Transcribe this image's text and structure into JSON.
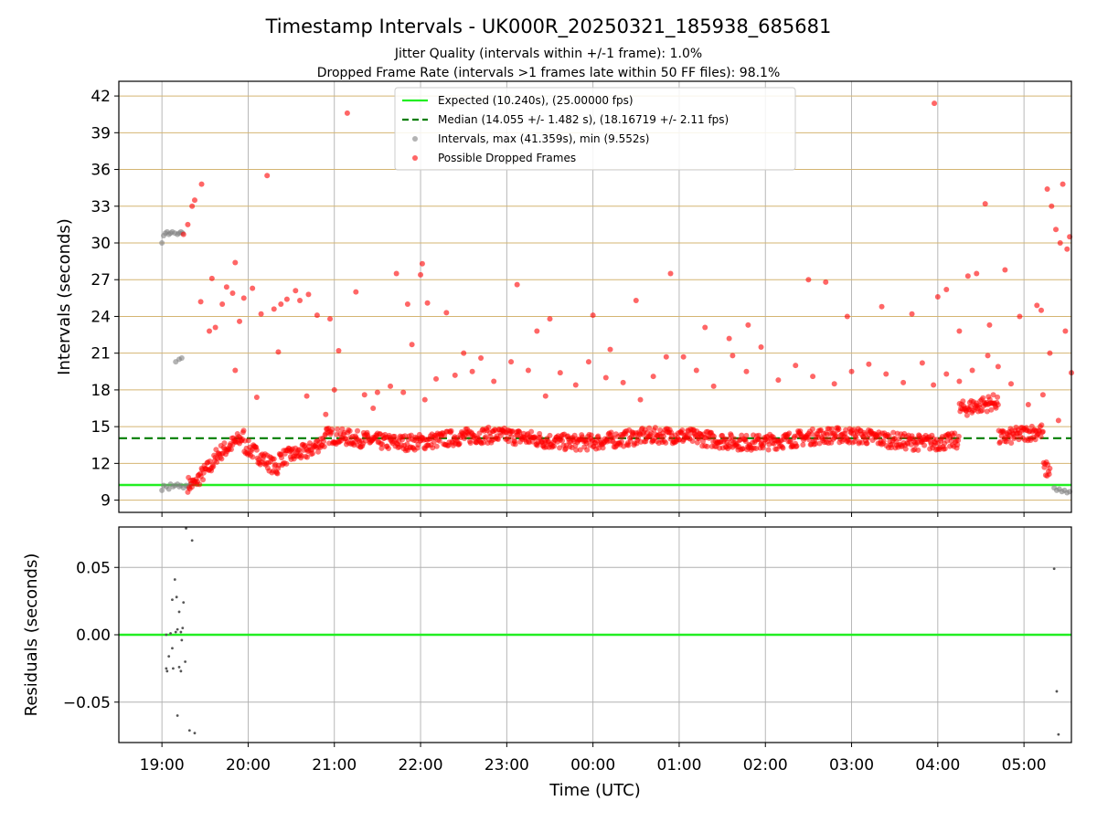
{
  "chart_data": {
    "type": "scatter",
    "title": "Timestamp Intervals - UK000R_20250321_185938_685681",
    "subtitle_line1": "Jitter Quality (intervals within +/-1 frame): 1.0%",
    "subtitle_line2": "Dropped Frame Rate (intervals >1 frames late within 50 FF files): 98.1%",
    "xlabel": "Time (UTC)",
    "x_tick_labels": [
      "19:00",
      "20:00",
      "21:00",
      "22:00",
      "23:00",
      "00:00",
      "01:00",
      "02:00",
      "03:00",
      "04:00",
      "05:00"
    ],
    "x_range_hours": [
      18.5,
      29.55
    ],
    "panels": [
      {
        "name": "intervals",
        "ylabel": "Intervals (seconds)",
        "ylim": [
          8.0,
          43.2
        ],
        "y_ticks": [
          9,
          12,
          15,
          18,
          21,
          24,
          27,
          30,
          33,
          36,
          39,
          42
        ],
        "grid_horizontal_color": "#d4b572",
        "expected_line": {
          "value": 10.24,
          "label": "Expected (10.240s), (25.00000 fps)",
          "color": "#22ee22"
        },
        "median_line": {
          "value": 14.055,
          "label": "Median (14.055 +/- 1.482 s), (18.16719 +/- 2.11 fps)",
          "color": "#007d00"
        },
        "series": [
          {
            "name": "Intervals, max (41.359s), min (9.552s)",
            "color": "#808080"
          },
          {
            "name": "Possible Dropped Frames",
            "color": "#ff0000"
          }
        ],
        "legend_location": "top-center"
      },
      {
        "name": "residuals",
        "ylabel": "Residuals (seconds)",
        "ylim": [
          -0.08,
          0.08
        ],
        "y_ticks": [
          0.05,
          0.0,
          -0.05
        ],
        "y_tick_labels": [
          "0.05",
          "0.00",
          "−0.05"
        ],
        "zero_line_color": "#22ee22"
      }
    ],
    "grey_points": [
      [
        19.0,
        30.0
      ],
      [
        19.02,
        30.6
      ],
      [
        19.04,
        30.8
      ],
      [
        19.06,
        30.9
      ],
      [
        19.08,
        30.7
      ],
      [
        19.1,
        30.8
      ],
      [
        19.12,
        30.9
      ],
      [
        19.15,
        30.8
      ],
      [
        19.18,
        30.7
      ],
      [
        19.2,
        30.8
      ],
      [
        19.22,
        30.9
      ],
      [
        19.24,
        30.8
      ],
      [
        19.16,
        20.3
      ],
      [
        19.2,
        20.5
      ],
      [
        19.23,
        20.6
      ],
      [
        19.0,
        9.8
      ],
      [
        19.02,
        10.2
      ],
      [
        19.05,
        10.1
      ],
      [
        19.08,
        9.9
      ],
      [
        19.1,
        10.3
      ],
      [
        19.13,
        10.1
      ],
      [
        19.15,
        10.2
      ],
      [
        19.18,
        10.3
      ],
      [
        19.2,
        10.1
      ],
      [
        19.22,
        10.2
      ],
      [
        19.25,
        10.0
      ],
      [
        19.28,
        10.2
      ],
      [
        19.3,
        10.1
      ],
      [
        19.33,
        10.3
      ],
      [
        29.35,
        10.0
      ],
      [
        29.38,
        9.8
      ],
      [
        29.41,
        9.9
      ],
      [
        29.44,
        9.7
      ],
      [
        29.47,
        9.8
      ],
      [
        29.5,
        9.6
      ],
      [
        29.53,
        9.7
      ]
    ],
    "red_points": [
      [
        19.25,
        30.7
      ],
      [
        19.3,
        31.5
      ],
      [
        19.35,
        33.0
      ],
      [
        19.38,
        33.5
      ],
      [
        19.46,
        34.8
      ],
      [
        19.58,
        27.1
      ],
      [
        19.7,
        25.0
      ],
      [
        19.75,
        26.4
      ],
      [
        19.85,
        28.4
      ],
      [
        19.85,
        19.6
      ],
      [
        19.9,
        23.6
      ],
      [
        19.95,
        25.5
      ],
      [
        20.05,
        26.3
      ],
      [
        20.1,
        17.4
      ],
      [
        20.15,
        24.2
      ],
      [
        20.22,
        35.5
      ],
      [
        20.3,
        24.6
      ],
      [
        20.38,
        25.0
      ],
      [
        20.45,
        25.4
      ],
      [
        20.55,
        26.1
      ],
      [
        20.6,
        25.3
      ],
      [
        20.7,
        25.8
      ],
      [
        20.8,
        24.1
      ],
      [
        20.95,
        23.8
      ],
      [
        21.05,
        21.2
      ],
      [
        21.15,
        40.6
      ],
      [
        21.25,
        26.0
      ],
      [
        21.35,
        17.6
      ],
      [
        21.5,
        17.8
      ],
      [
        21.72,
        27.5
      ],
      [
        21.85,
        25.0
      ],
      [
        21.9,
        21.7
      ],
      [
        22.0,
        27.4
      ],
      [
        22.02,
        28.3
      ],
      [
        22.08,
        25.1
      ],
      [
        22.3,
        24.3
      ],
      [
        22.5,
        21.0
      ],
      [
        22.7,
        20.6
      ],
      [
        23.12,
        26.6
      ],
      [
        23.35,
        22.8
      ],
      [
        23.5,
        23.8
      ],
      [
        24.0,
        24.1
      ],
      [
        24.2,
        21.3
      ],
      [
        24.5,
        25.3
      ],
      [
        24.9,
        27.5
      ],
      [
        25.3,
        23.1
      ],
      [
        25.58,
        22.2
      ],
      [
        25.8,
        23.3
      ],
      [
        26.5,
        27.0
      ],
      [
        26.7,
        26.8
      ],
      [
        26.95,
        24.0
      ],
      [
        27.35,
        24.8
      ],
      [
        27.7,
        24.2
      ],
      [
        27.96,
        41.4
      ],
      [
        28.0,
        25.6
      ],
      [
        28.1,
        26.2
      ],
      [
        28.25,
        22.8
      ],
      [
        28.35,
        27.3
      ],
      [
        28.45,
        27.5
      ],
      [
        28.55,
        33.2
      ],
      [
        28.6,
        23.3
      ],
      [
        28.78,
        27.8
      ],
      [
        28.95,
        24.0
      ],
      [
        29.15,
        24.9
      ],
      [
        29.2,
        24.5
      ],
      [
        29.3,
        21.0
      ],
      [
        29.27,
        34.4
      ],
      [
        29.32,
        33.0
      ],
      [
        29.37,
        31.1
      ],
      [
        29.45,
        34.8
      ],
      [
        29.42,
        30.0
      ],
      [
        29.5,
        29.5
      ],
      [
        29.53,
        30.5
      ],
      [
        29.48,
        22.8
      ],
      [
        29.55,
        19.4
      ],
      [
        19.45,
        25.2
      ],
      [
        19.55,
        22.8
      ],
      [
        19.62,
        23.1
      ],
      [
        19.82,
        25.9
      ],
      [
        20.35,
        21.1
      ],
      [
        20.5,
        13.1
      ],
      [
        20.68,
        17.5
      ],
      [
        20.9,
        16.0
      ],
      [
        21.0,
        18.0
      ],
      [
        21.45,
        16.5
      ],
      [
        21.65,
        18.3
      ],
      [
        21.8,
        17.8
      ],
      [
        22.05,
        17.2
      ],
      [
        22.18,
        18.9
      ],
      [
        22.4,
        19.2
      ],
      [
        22.6,
        19.5
      ],
      [
        22.85,
        18.7
      ],
      [
        23.05,
        20.3
      ],
      [
        23.25,
        19.6
      ],
      [
        23.45,
        17.5
      ],
      [
        23.62,
        19.4
      ],
      [
        23.8,
        18.4
      ],
      [
        23.95,
        20.3
      ],
      [
        24.15,
        19.0
      ],
      [
        24.35,
        18.6
      ],
      [
        24.55,
        17.2
      ],
      [
        24.7,
        19.1
      ],
      [
        24.85,
        20.7
      ],
      [
        25.05,
        20.7
      ],
      [
        25.2,
        19.6
      ],
      [
        25.4,
        18.3
      ],
      [
        25.62,
        20.8
      ],
      [
        25.78,
        19.5
      ],
      [
        25.95,
        21.5
      ],
      [
        26.15,
        18.8
      ],
      [
        26.35,
        20.0
      ],
      [
        26.55,
        19.1
      ],
      [
        26.8,
        18.5
      ],
      [
        27.0,
        19.5
      ],
      [
        27.2,
        20.1
      ],
      [
        27.4,
        19.3
      ],
      [
        27.6,
        18.6
      ],
      [
        27.82,
        20.2
      ],
      [
        27.95,
        18.4
      ],
      [
        28.1,
        19.3
      ],
      [
        28.25,
        18.7
      ],
      [
        28.4,
        19.6
      ],
      [
        28.58,
        20.8
      ],
      [
        28.7,
        19.9
      ],
      [
        28.85,
        18.5
      ],
      [
        29.05,
        16.8
      ],
      [
        29.22,
        17.6
      ],
      [
        29.4,
        15.5
      ]
    ]
  }
}
